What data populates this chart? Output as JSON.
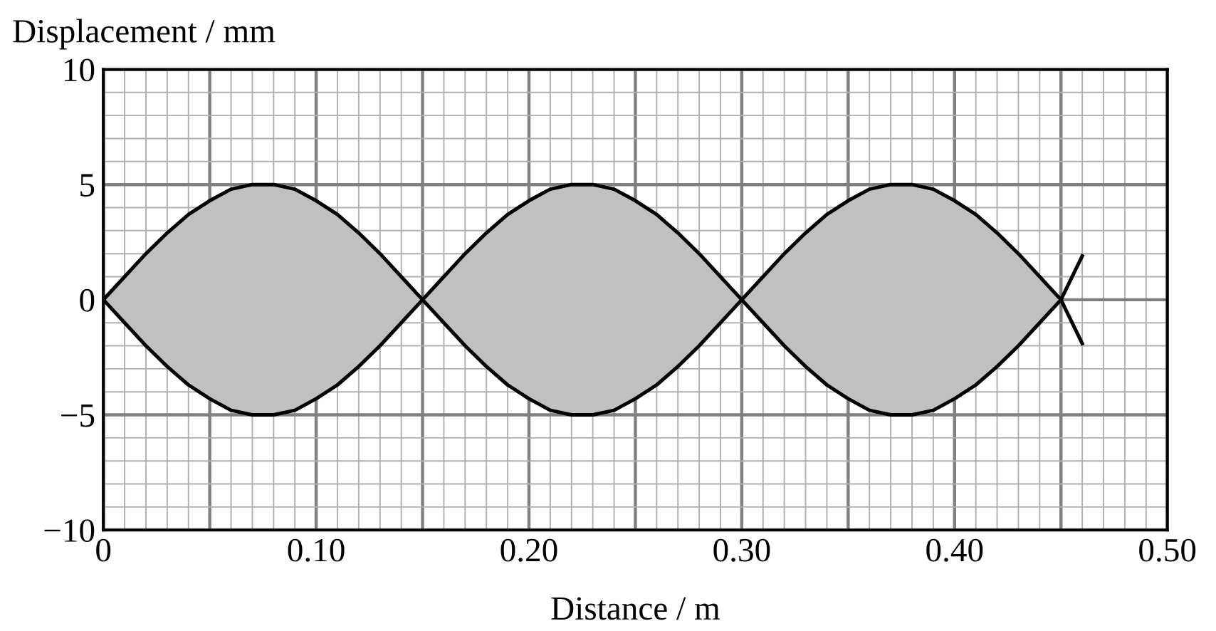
{
  "chart_data": {
    "type": "line",
    "xlabel": "Distance / m",
    "ylabel": "Displacement / mm",
    "x": [
      0,
      0.01,
      0.02,
      0.03,
      0.04,
      0.05,
      0.06,
      0.07,
      0.075,
      0.08,
      0.09,
      0.1,
      0.11,
      0.12,
      0.13,
      0.14,
      0.15,
      0.16,
      0.17,
      0.18,
      0.19,
      0.2,
      0.21,
      0.22,
      0.225,
      0.23,
      0.24,
      0.25,
      0.26,
      0.27,
      0.28,
      0.29,
      0.3,
      0.31,
      0.32,
      0.33,
      0.34,
      0.35,
      0.36,
      0.37,
      0.375,
      0.38,
      0.39,
      0.4,
      0.41,
      0.42,
      0.43,
      0.44,
      0.45,
      0.46
    ],
    "series": [
      {
        "color": "#000000",
        "values": [
          0,
          1.0,
          2.0,
          2.9,
          3.7,
          4.3,
          4.8,
          5.0,
          5.0,
          5.0,
          4.8,
          4.3,
          3.7,
          2.9,
          2.0,
          1.0,
          0,
          1.0,
          2.0,
          2.9,
          3.7,
          4.3,
          4.8,
          5.0,
          5.0,
          5.0,
          4.8,
          4.3,
          3.7,
          2.9,
          2.0,
          1.0,
          0,
          1.0,
          2.0,
          2.9,
          3.7,
          4.3,
          4.8,
          5.0,
          5.0,
          5.0,
          4.8,
          4.3,
          3.7,
          2.9,
          2.0,
          1.0,
          0,
          -1.9
        ],
        "upper": [
          0,
          1.0,
          2.0,
          2.9,
          3.7,
          4.3,
          4.8,
          5.0,
          5.0,
          5.0,
          4.8,
          4.3,
          3.7,
          2.9,
          2.0,
          1.0,
          0,
          1.0,
          2.0,
          2.9,
          3.7,
          4.3,
          4.8,
          5.0,
          5.0,
          5.0,
          4.8,
          4.3,
          3.7,
          2.9,
          2.0,
          1.0,
          0,
          1.0,
          2.0,
          2.9,
          3.7,
          4.3,
          4.8,
          5.0,
          5.0,
          5.0,
          4.8,
          4.3,
          3.7,
          2.9,
          2.0,
          1.0,
          0,
          null
        ],
        "lower": [
          0,
          -1.0,
          -2.0,
          -2.9,
          -3.7,
          -4.3,
          -4.8,
          -5.0,
          -5.0,
          -5.0,
          -4.8,
          -4.3,
          -3.7,
          -2.9,
          -2.0,
          -1.0,
          0,
          -1.0,
          -2.0,
          -2.9,
          -3.7,
          -4.3,
          -4.8,
          -5.0,
          -5.0,
          -5.0,
          -4.8,
          -4.3,
          -3.7,
          -2.9,
          -2.0,
          -1.0,
          0,
          -1.0,
          -2.0,
          -2.9,
          -3.7,
          -4.3,
          -4.8,
          -5.0,
          -5.0,
          -5.0,
          -4.8,
          -4.3,
          -3.7,
          -2.9,
          -2.0,
          -1.0,
          0,
          null
        ]
      },
      {
        "color": "#000000",
        "values": [
          0,
          -1.0,
          -2.0,
          -2.9,
          -3.7,
          -4.3,
          -4.8,
          -5.0,
          -5.0,
          -5.0,
          -4.8,
          -4.3,
          -3.7,
          -2.9,
          -2.0,
          -1.0,
          0,
          -1.0,
          -2.0,
          -2.9,
          -3.7,
          -4.3,
          -4.8,
          -5.0,
          -5.0,
          -5.0,
          -4.8,
          -4.3,
          -3.7,
          -2.9,
          -2.0,
          -1.0,
          0,
          -1.0,
          -2.0,
          -2.9,
          -3.7,
          -4.3,
          -4.8,
          -5.0,
          -5.0,
          -5.0,
          -4.8,
          -4.3,
          -3.7,
          -2.9,
          -2.0,
          -1.0,
          0,
          1.9
        ]
      }
    ],
    "xlim": [
      0,
      0.5
    ],
    "ylim": [
      -10,
      10
    ],
    "xticks": [
      0,
      {
        "value": 0.01,
        "label": null
      },
      {
        "value": 0.02,
        "label": null
      },
      {
        "value": 0.03,
        "label": null
      },
      {
        "value": 0.04,
        "label": null
      },
      {
        "value": 0.05,
        "label": null
      },
      {
        "value": 0.06,
        "label": null
      },
      {
        "value": 0.07,
        "label": null
      },
      {
        "value": 0.08,
        "label": null
      },
      {
        "value": 0.09,
        "label": null
      },
      {
        "value": 0.1,
        "label": "0.10"
      },
      {
        "value": 0.11,
        "label": null
      },
      {
        "value": 0.12,
        "label": null
      },
      {
        "value": 0.13,
        "label": null
      },
      {
        "value": 0.14,
        "label": null
      },
      {
        "value": 0.15,
        "label": null
      },
      {
        "value": 0.16,
        "label": null
      },
      {
        "value": 0.17,
        "label": null
      },
      {
        "value": 0.18,
        "label": null
      },
      {
        "value": 0.19,
        "label": null
      },
      {
        "value": 0.2,
        "label": "0.20"
      },
      {
        "value": 0.21,
        "label": null
      },
      {
        "value": 0.22,
        "label": null
      },
      {
        "value": 0.23,
        "label": null
      },
      {
        "value": 0.24,
        "label": null
      },
      {
        "value": 0.25,
        "label": null
      },
      {
        "value": 0.26,
        "label": null
      },
      {
        "value": 0.27,
        "label": null
      },
      {
        "value": 0.28,
        "label": null
      },
      {
        "value": 0.29,
        "label": null
      },
      {
        "value": 0.3,
        "label": "0.30"
      },
      {
        "value": 0.31,
        "label": null
      },
      {
        "value": 0.32,
        "label": null
      },
      {
        "value": 0.33,
        "label": null
      },
      {
        "value": 0.34,
        "label": null
      },
      {
        "value": 0.35,
        "label": null
      },
      {
        "value": 0.36,
        "label": null
      },
      {
        "value": 0.37,
        "label": null
      },
      {
        "value": 0.38,
        "label": null
      },
      {
        "value": 0.39,
        "label": null
      },
      {
        "value": 0.4,
        "label": "0.40"
      },
      {
        "value": 0.41,
        "label": null
      },
      {
        "value": 0.42,
        "label": null
      },
      {
        "value": 0.43,
        "label": null
      },
      {
        "value": 0.44,
        "label": null
      },
      {
        "value": 0.45,
        "label": null
      },
      {
        "value": 0.46,
        "label": null
      },
      {
        "value": 0.47,
        "label": null
      },
      {
        "value": 0.48,
        "label": null
      },
      {
        "value": 0.49,
        "label": null
      },
      {
        "value": 0.5,
        "label": "0.50"
      }
    ],
    "yticks": [
      {
        "value": -10,
        "label": "−10"
      },
      {
        "value": -9,
        "label": null
      },
      {
        "value": -8,
        "label": null
      },
      {
        "value": -7,
        "label": null
      },
      {
        "value": -6,
        "label": null
      },
      {
        "value": -5,
        "label": "−5"
      },
      {
        "value": -4,
        "label": null
      },
      {
        "value": -3,
        "label": null
      },
      {
        "value": -2,
        "label": null
      },
      {
        "value": -1,
        "label": null
      },
      0,
      {
        "value": 1,
        "label": null
      },
      {
        "value": 2,
        "label": null
      },
      {
        "value": 3,
        "label": null
      },
      {
        "value": 4,
        "label": null
      },
      5,
      {
        "value": 6,
        "label": null
      },
      {
        "value": 7,
        "label": null
      },
      {
        "value": 8,
        "label": null
      },
      {
        "value": 9,
        "label": null
      },
      10
    ],
    "grid": true,
    "line_style": "solid",
    "marker": "none"
  }
}
